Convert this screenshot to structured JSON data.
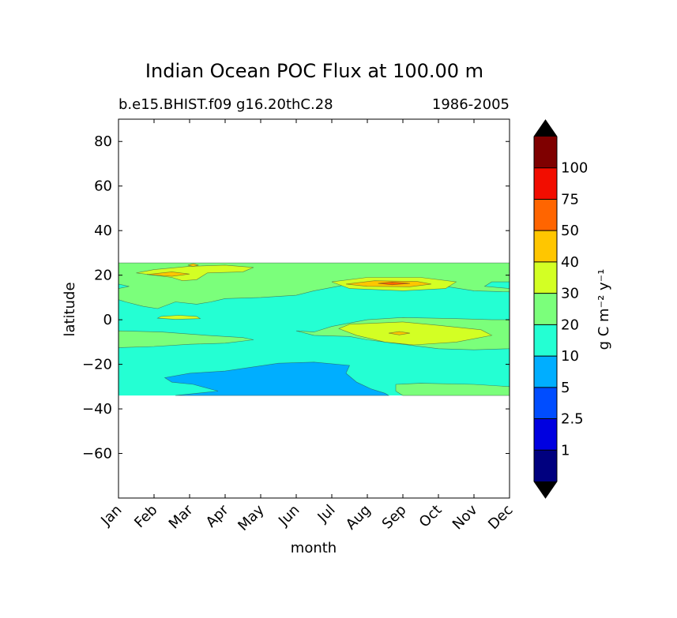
{
  "chart_data": {
    "type": "heatmap",
    "title": "Indian Ocean POC Flux at 100.00 m",
    "subtitle_left": "b.e15.BHIST.f09 g16.20thC.28",
    "subtitle_right": "1986-2005",
    "xlabel": "month",
    "ylabel": "latitude",
    "x_ticks": [
      "Jan",
      "Feb",
      "Mar",
      "Apr",
      "May",
      "Jun",
      "Jul",
      "Aug",
      "Sep",
      "Oct",
      "Nov",
      "Dec"
    ],
    "xlim": [
      0,
      11
    ],
    "ylim": [
      -80,
      90
    ],
    "y_ticks": [
      80,
      60,
      40,
      20,
      0,
      -20,
      -40,
      -60
    ],
    "data_lat_range": [
      -34,
      25.5
    ],
    "colorbar": {
      "label": "g C m⁻² y⁻¹",
      "levels": [
        "1",
        "2.5",
        "5",
        "10",
        "20",
        "30",
        "40",
        "50",
        "75",
        "100"
      ],
      "colors": [
        "#00007f",
        "#0000e0",
        "#004dff",
        "#00aeff",
        "#24ffd3",
        "#7bff7b",
        "#d3ff24",
        "#ffc600",
        "#ff6500",
        "#f20d00",
        "#7f0000"
      ],
      "under_color": "#000000",
      "over_color": "#000000"
    },
    "contour_bands": [
      {
        "level": "10-20",
        "description": "background"
      },
      {
        "level": "20-30",
        "regions": "north band 13-24N all year; Jan-Apr 5S-12S; Aug-Dec 0 to 13S; Sep-Dec 30-34S"
      },
      {
        "level": "30-40",
        "regions": "Feb-Mar 17-24N; Aug-Sep 13-19N; Aug-Nov 2S-11S; Mar 1N"
      },
      {
        "level": "40-50",
        "regions": "Feb 20N; Mar 24N; Aug-Sep 15-17N"
      },
      {
        "level": "50-75",
        "regions": "Sep 16N"
      },
      {
        "level": "5-10",
        "regions": "Feb-Aug 19S-34S"
      }
    ]
  }
}
